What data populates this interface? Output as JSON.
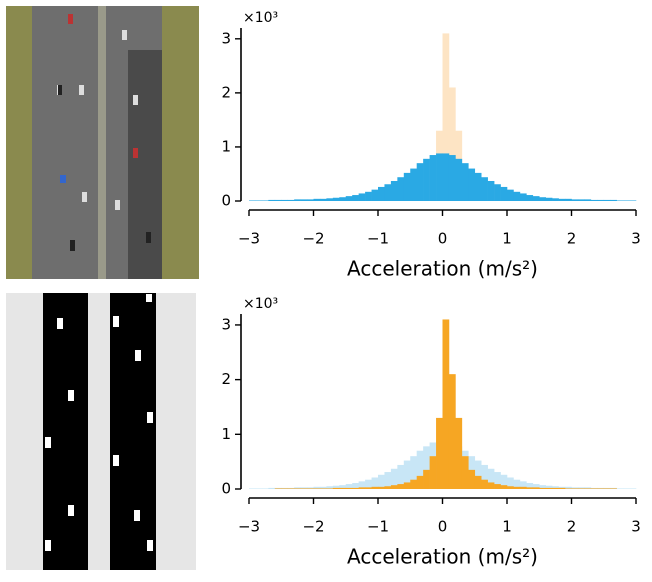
{
  "chart_data": [
    {
      "type": "histogram",
      "y_multiplier": "×10³",
      "xlabel": "Acceleration (m/s²)",
      "bins": [
        -3,
        -2.9,
        -2.8,
        -2.7,
        -2.6,
        -2.5,
        -2.4,
        -2.3,
        -2.2,
        -2.1,
        -2,
        -1.9,
        -1.8,
        -1.7,
        -1.6,
        -1.5,
        -1.4,
        -1.3,
        -1.2,
        -1.1,
        -1,
        -0.9,
        -0.8,
        -0.7,
        -0.6,
        -0.5,
        -0.4,
        -0.3,
        -0.2,
        -0.1,
        0,
        0.1,
        0.2,
        0.3,
        0.4,
        0.5,
        0.6,
        0.7,
        0.8,
        0.9,
        1,
        1.1,
        1.2,
        1.3,
        1.4,
        1.5,
        1.6,
        1.7,
        1.8,
        1.9,
        2,
        2.1,
        2.2,
        2.3,
        2.4,
        2.5,
        2.6,
        2.7,
        2.8,
        2.9,
        3
      ],
      "series": [
        {
          "color": "#fde4c4",
          "values": [
            0,
            0,
            0,
            0,
            0.01,
            0.01,
            0.01,
            0.01,
            0.01,
            0.01,
            0.01,
            0.01,
            0.01,
            0.02,
            0.02,
            0.02,
            0.02,
            0.03,
            0.03,
            0.04,
            0.04,
            0.05,
            0.07,
            0.09,
            0.12,
            0.17,
            0.24,
            0.35,
            0.6,
            1.3,
            3.1,
            2.1,
            1.3,
            0.6,
            0.35,
            0.24,
            0.17,
            0.12,
            0.09,
            0.07,
            0.05,
            0.04,
            0.04,
            0.03,
            0.03,
            0.02,
            0.02,
            0.02,
            0.02,
            0.01,
            0.01,
            0.01,
            0.01,
            0.01,
            0.01,
            0.01,
            0.01,
            0,
            0,
            0
          ]
        },
        {
          "color": "#2aa9e4",
          "values": [
            0.01,
            0.01,
            0.01,
            0.02,
            0.02,
            0.02,
            0.02,
            0.03,
            0.03,
            0.03,
            0.04,
            0.04,
            0.05,
            0.06,
            0.07,
            0.09,
            0.11,
            0.14,
            0.17,
            0.21,
            0.26,
            0.31,
            0.37,
            0.44,
            0.52,
            0.6,
            0.7,
            0.78,
            0.85,
            0.88,
            0.88,
            0.85,
            0.78,
            0.7,
            0.6,
            0.52,
            0.44,
            0.37,
            0.31,
            0.26,
            0.21,
            0.17,
            0.14,
            0.11,
            0.09,
            0.07,
            0.06,
            0.05,
            0.04,
            0.04,
            0.03,
            0.03,
            0.03,
            0.02,
            0.02,
            0.02,
            0.02,
            0.01,
            0.01,
            0.01
          ]
        }
      ],
      "xlim": [
        -3,
        3
      ],
      "ylim": [
        0,
        3.2
      ],
      "xticks": [
        {
          "value": -3,
          "label": "−3"
        },
        {
          "value": -2,
          "label": "−2"
        },
        {
          "value": -1,
          "label": "−1"
        },
        0,
        1,
        2,
        3
      ],
      "yticks": [
        0,
        1,
        2,
        3
      ]
    },
    {
      "type": "histogram",
      "y_multiplier": "×10³",
      "xlabel": "Acceleration (m/s²)",
      "bins": [
        -3,
        -2.9,
        -2.8,
        -2.7,
        -2.6,
        -2.5,
        -2.4,
        -2.3,
        -2.2,
        -2.1,
        -2,
        -1.9,
        -1.8,
        -1.7,
        -1.6,
        -1.5,
        -1.4,
        -1.3,
        -1.2,
        -1.1,
        -1,
        -0.9,
        -0.8,
        -0.7,
        -0.6,
        -0.5,
        -0.4,
        -0.3,
        -0.2,
        -0.1,
        0,
        0.1,
        0.2,
        0.3,
        0.4,
        0.5,
        0.6,
        0.7,
        0.8,
        0.9,
        1,
        1.1,
        1.2,
        1.3,
        1.4,
        1.5,
        1.6,
        1.7,
        1.8,
        1.9,
        2,
        2.1,
        2.2,
        2.3,
        2.4,
        2.5,
        2.6,
        2.7,
        2.8,
        2.9,
        3
      ],
      "series": [
        {
          "color": "#c8e6f6",
          "values": [
            0.01,
            0.01,
            0.01,
            0.02,
            0.02,
            0.02,
            0.02,
            0.03,
            0.03,
            0.03,
            0.04,
            0.04,
            0.05,
            0.06,
            0.07,
            0.09,
            0.11,
            0.14,
            0.17,
            0.21,
            0.26,
            0.31,
            0.37,
            0.44,
            0.52,
            0.6,
            0.7,
            0.78,
            0.85,
            0.88,
            0.88,
            0.85,
            0.78,
            0.7,
            0.6,
            0.52,
            0.44,
            0.37,
            0.31,
            0.26,
            0.21,
            0.17,
            0.14,
            0.11,
            0.09,
            0.07,
            0.06,
            0.05,
            0.04,
            0.04,
            0.03,
            0.03,
            0.03,
            0.02,
            0.02,
            0.02,
            0.02,
            0.01,
            0.01,
            0.01
          ]
        },
        {
          "color": "#f6a623",
          "values": [
            0,
            0,
            0,
            0,
            0.01,
            0.01,
            0.01,
            0.01,
            0.01,
            0.01,
            0.01,
            0.01,
            0.01,
            0.02,
            0.02,
            0.02,
            0.02,
            0.03,
            0.03,
            0.04,
            0.04,
            0.05,
            0.07,
            0.09,
            0.12,
            0.17,
            0.24,
            0.35,
            0.6,
            1.3,
            3.1,
            2.1,
            1.3,
            0.6,
            0.35,
            0.24,
            0.17,
            0.12,
            0.09,
            0.07,
            0.05,
            0.04,
            0.04,
            0.03,
            0.03,
            0.02,
            0.02,
            0.02,
            0.02,
            0.01,
            0.01,
            0.01,
            0.01,
            0.01,
            0.01,
            0.01,
            0.01,
            0,
            0,
            0
          ]
        }
      ],
      "xlim": [
        -3,
        3
      ],
      "ylim": [
        0,
        3.2
      ],
      "xticks": [
        {
          "value": -3,
          "label": "−3"
        },
        {
          "value": -2,
          "label": "−2"
        },
        {
          "value": -1,
          "label": "−1"
        },
        0,
        1,
        2,
        3
      ],
      "yticks": [
        0,
        1,
        2,
        3
      ]
    }
  ]
}
